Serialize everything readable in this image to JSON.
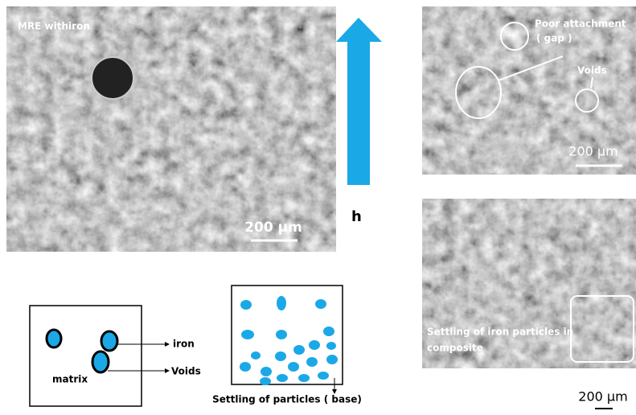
{
  "panels": {
    "mre_iron": {
      "label": "MRE withiron",
      "scale": "200 µm"
    },
    "top_right": {
      "annotations": [
        "Poor attachment",
        "( gap )",
        "Voids"
      ],
      "scale": "200 µm"
    },
    "bottom_right": {
      "annotations": [
        "Settling of iron particles in",
        "composite"
      ],
      "scale": "200 µm"
    }
  },
  "arrow": {
    "label": "h"
  },
  "schematic": {
    "labels": [
      "iron",
      "Voids",
      "matrix"
    ]
  },
  "settling": {
    "caption": "Settling of particles ( base)"
  }
}
